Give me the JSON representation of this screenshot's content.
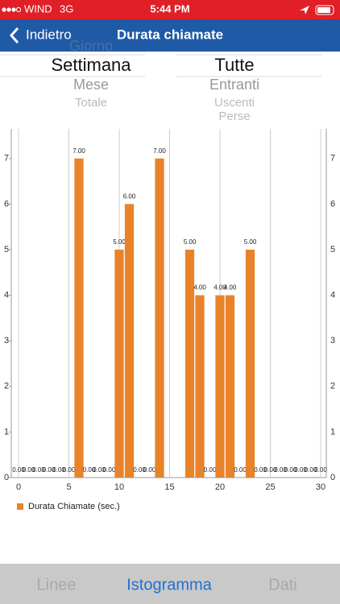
{
  "status_bar": {
    "carrier": "WIND",
    "network": "3G",
    "time": "5:44 PM"
  },
  "nav_bar": {
    "back": "Indietro",
    "title": "Durata chiamate"
  },
  "pickers": [
    {
      "items": [
        "Giorno",
        "Settimana",
        "Mese",
        "Totale"
      ],
      "selected": 1
    },
    {
      "items": [
        "Tutte",
        "Entranti",
        "Uscenti",
        "Perse"
      ],
      "selected": 0
    }
  ],
  "chart_data": {
    "type": "bar",
    "x": [
      0,
      1,
      2,
      3,
      4,
      5,
      6,
      7,
      8,
      9,
      10,
      11,
      12,
      13,
      14,
      17,
      18,
      19,
      20,
      21,
      22,
      23,
      24,
      25,
      26,
      27,
      28,
      29,
      30
    ],
    "series": [
      {
        "name": "Durata Chiamate (sec.)",
        "color": "#e8832a",
        "values": [
          0,
          0,
          0,
          0,
          0,
          0,
          7,
          0,
          0,
          0,
          5,
          6,
          0,
          0,
          7,
          5,
          4,
          0,
          4,
          4,
          0,
          5,
          0,
          0,
          0,
          0,
          0,
          0,
          0
        ],
        "value_labels": [
          "0.00",
          "0.00",
          "0.00",
          "0.00",
          "0.00",
          "0.00",
          "7.00",
          "0.00",
          "0.00",
          "0.00",
          "5.00",
          "6.00",
          "0.00",
          "0.00",
          "7.00",
          "5.00",
          "4.00",
          "0.00",
          "4.00",
          "4.00",
          "0.00",
          "5.00",
          "0.00",
          "0.00",
          "0.00",
          "0.00",
          "0.00",
          "0.00",
          "0.00"
        ]
      }
    ],
    "xlim": [
      -0.72,
      30.56
    ],
    "xticks": [
      0,
      5,
      10,
      15,
      20,
      25,
      30
    ],
    "ylim": [
      0,
      7.65
    ],
    "yticks": [
      0,
      1,
      2,
      3,
      4,
      5,
      6,
      7
    ],
    "grid": true,
    "legend": "bottom-left"
  },
  "tabs": {
    "items": [
      "Linee",
      "Istogramma",
      "Dati"
    ],
    "selected": 1
  }
}
